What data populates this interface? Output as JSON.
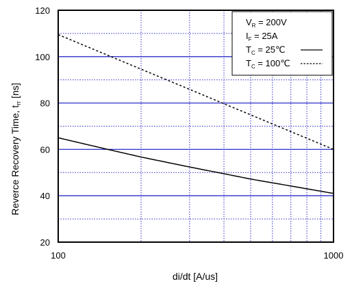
{
  "chart_data": {
    "type": "line",
    "xlabel": "di/dt [A/us]",
    "ylabel": {
      "main": "Reverce Recovery Time, t",
      "sub": "rr",
      "unit": " [ns]"
    },
    "x_scale": "log",
    "xlim": [
      100,
      1000
    ],
    "ylim": [
      20,
      120
    ],
    "x_ticks": [
      {
        "value": 100,
        "label": "100"
      },
      {
        "value": 1000,
        "label": "1000"
      }
    ],
    "y_ticks": [
      {
        "value": 20,
        "label": "20"
      },
      {
        "value": 40,
        "label": "40"
      },
      {
        "value": 60,
        "label": "60"
      },
      {
        "value": 80,
        "label": "80"
      },
      {
        "value": 100,
        "label": "100"
      },
      {
        "value": 120,
        "label": "120"
      }
    ],
    "major_grid_y": [
      40,
      60,
      80,
      100
    ],
    "minor_grid_y": [
      30,
      50,
      70,
      90,
      110
    ],
    "minor_grid_x": [
      200,
      300,
      400,
      500,
      600,
      700,
      800,
      900
    ],
    "grid": true,
    "legend_placement": "top-right",
    "conditions": [
      {
        "main": "V",
        "sub": "R",
        "rest": " = 200V"
      },
      {
        "main": "I",
        "sub": "F",
        "rest": " = 25A"
      }
    ],
    "series": [
      {
        "name": {
          "main": "T",
          "sub": "C",
          "rest": " =   25℃"
        },
        "line_style": "solid",
        "x": [
          100,
          150,
          200,
          300,
          400,
          500,
          700,
          1000
        ],
        "y": [
          65,
          60.1,
          56.7,
          52.4,
          49.5,
          47.2,
          44.2,
          41
        ]
      },
      {
        "name": {
          "main": "T",
          "sub": "C",
          "rest": " = 100℃"
        },
        "line_style": "dashed",
        "x": [
          100,
          1000
        ],
        "y": [
          109.5,
          60
        ]
      }
    ],
    "colors": {
      "major_grid": "#2d2dc8",
      "minor_grid": "#2d2dc8",
      "frame": "#000000",
      "series": "#000000"
    }
  }
}
